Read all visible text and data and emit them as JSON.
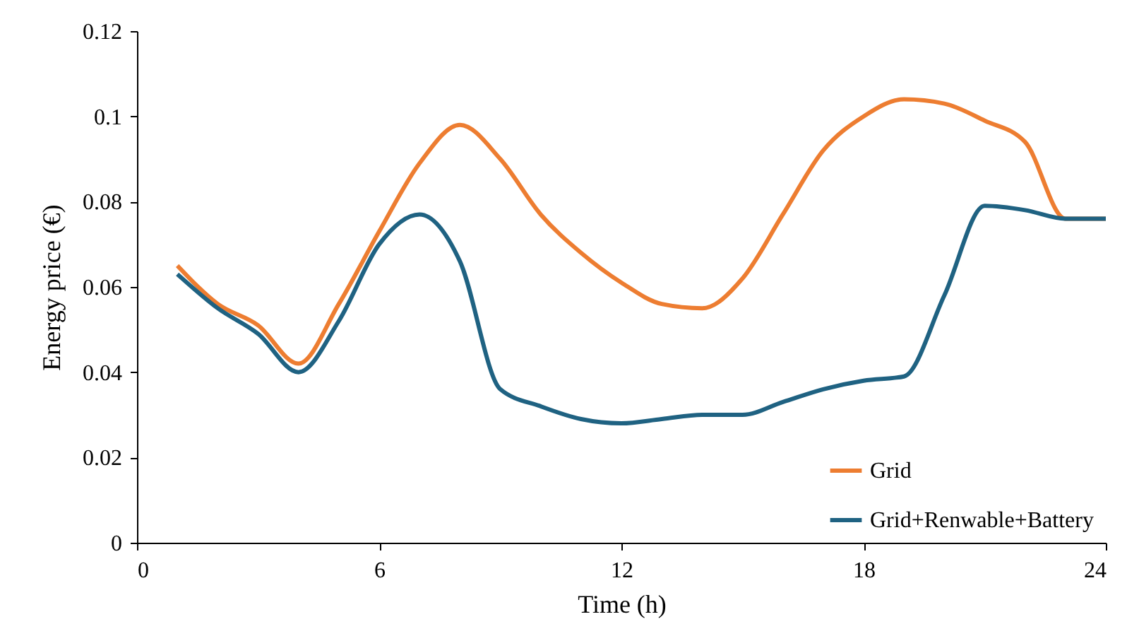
{
  "chart_data": {
    "type": "line",
    "xlabel": "Time (h)",
    "ylabel": "Energy price (€)",
    "x": [
      1,
      2,
      3,
      4,
      5,
      6,
      7,
      8,
      9,
      10,
      11,
      12,
      13,
      14,
      15,
      16,
      17,
      18,
      19,
      20,
      21,
      22,
      23,
      24
    ],
    "xlim": [
      0,
      24
    ],
    "xticks": [
      0,
      6,
      12,
      18,
      24
    ],
    "ylim": [
      0,
      0.12
    ],
    "yticks": [
      0,
      0.02,
      0.04,
      0.06,
      0.08,
      0.1,
      0.12
    ],
    "grid": false,
    "legend": "bottom right",
    "marker": "none",
    "line_style": "solid",
    "series": [
      {
        "name": "Grid",
        "color": "#ed7d31",
        "values": [
          0.065,
          0.056,
          0.051,
          0.042,
          0.056,
          0.073,
          0.089,
          0.098,
          0.09,
          0.077,
          0.068,
          0.061,
          0.056,
          0.055,
          0.062,
          0.077,
          0.092,
          0.1,
          0.104,
          0.103,
          0.099,
          0.094,
          0.076,
          0.076
        ]
      },
      {
        "name": "Grid+Renwable+Battery",
        "color": "#1f6282",
        "values": [
          0.063,
          0.055,
          0.049,
          0.04,
          0.052,
          0.07,
          0.077,
          0.066,
          0.036,
          0.032,
          0.029,
          0.028,
          0.029,
          0.03,
          0.03,
          0.033,
          0.036,
          0.038,
          0.039,
          0.058,
          0.079,
          0.078,
          0.076,
          0.076
        ]
      }
    ]
  }
}
